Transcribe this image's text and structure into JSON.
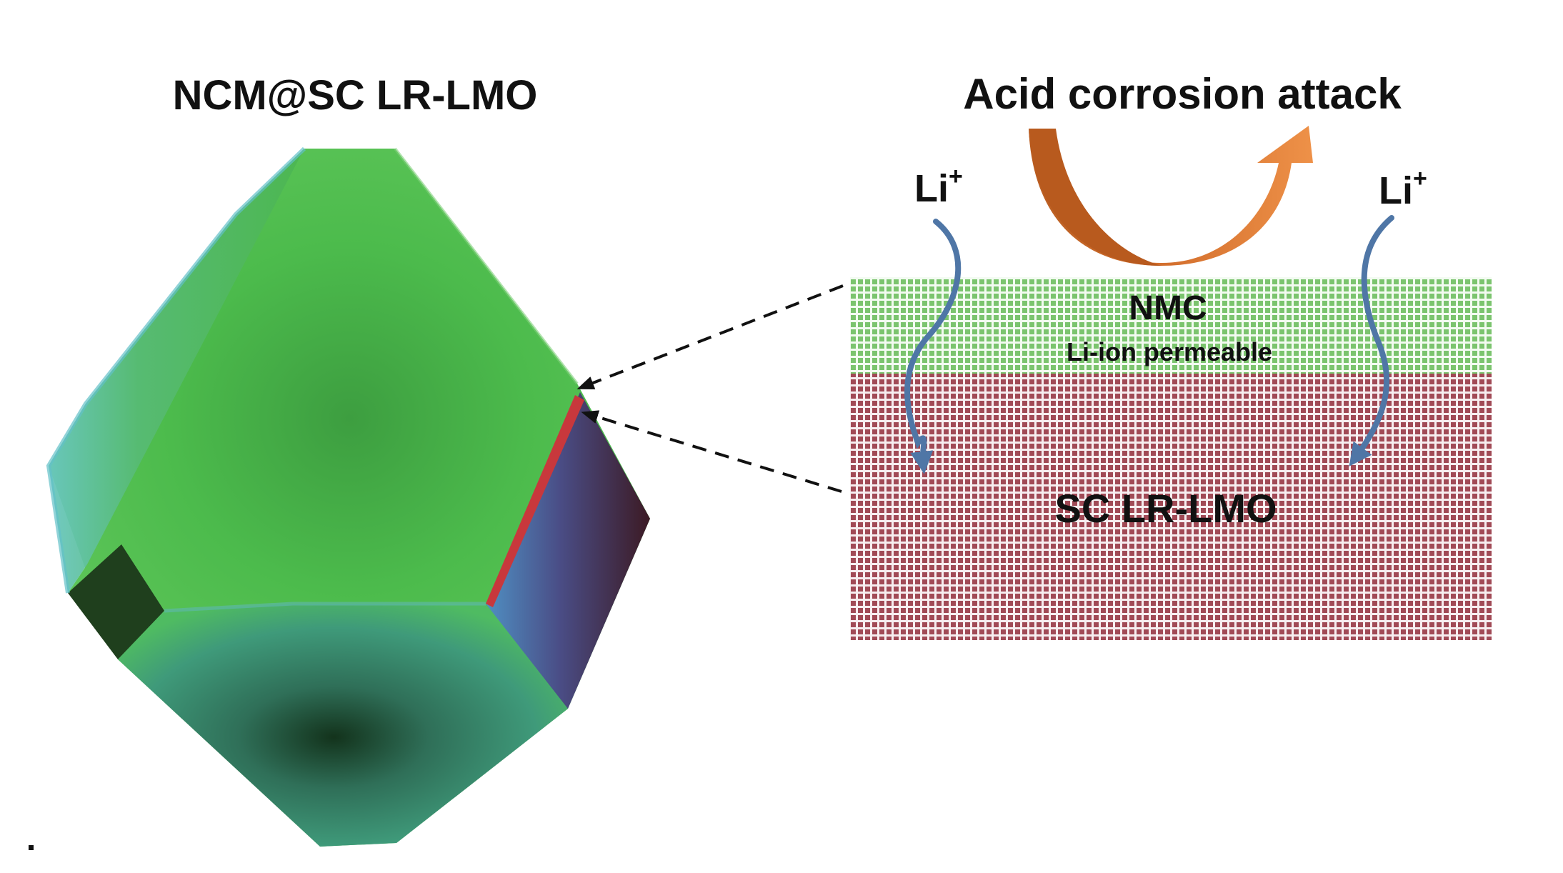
{
  "left_panel": {
    "title": "NCM@SC LR-LMO"
  },
  "right_panel": {
    "title": "Acid corrosion attack",
    "ion_label": "Li",
    "ion_charge": "+",
    "coating_layer": {
      "label": "NMC",
      "sublabel": "Li-ion permeable",
      "color": "#7bc46e"
    },
    "core_layer": {
      "label": "SC LR-LMO",
      "color": "#a14a56"
    }
  },
  "colors": {
    "crystal_green": "#4cbb4c",
    "crystal_edge_blue": "#4aa7b8",
    "crystal_dark_face": "#1f3f1d",
    "crystal_side_face": "#3c1a24",
    "red_edge": "#c8383c",
    "arrow_orange": "#e07b36",
    "ion_path_blue": "#4f76a6"
  },
  "icons": {
    "crystal": "truncated-octahedron-particle",
    "corrosion": "curved-arrow",
    "ion_path": "wavy-arrow"
  }
}
